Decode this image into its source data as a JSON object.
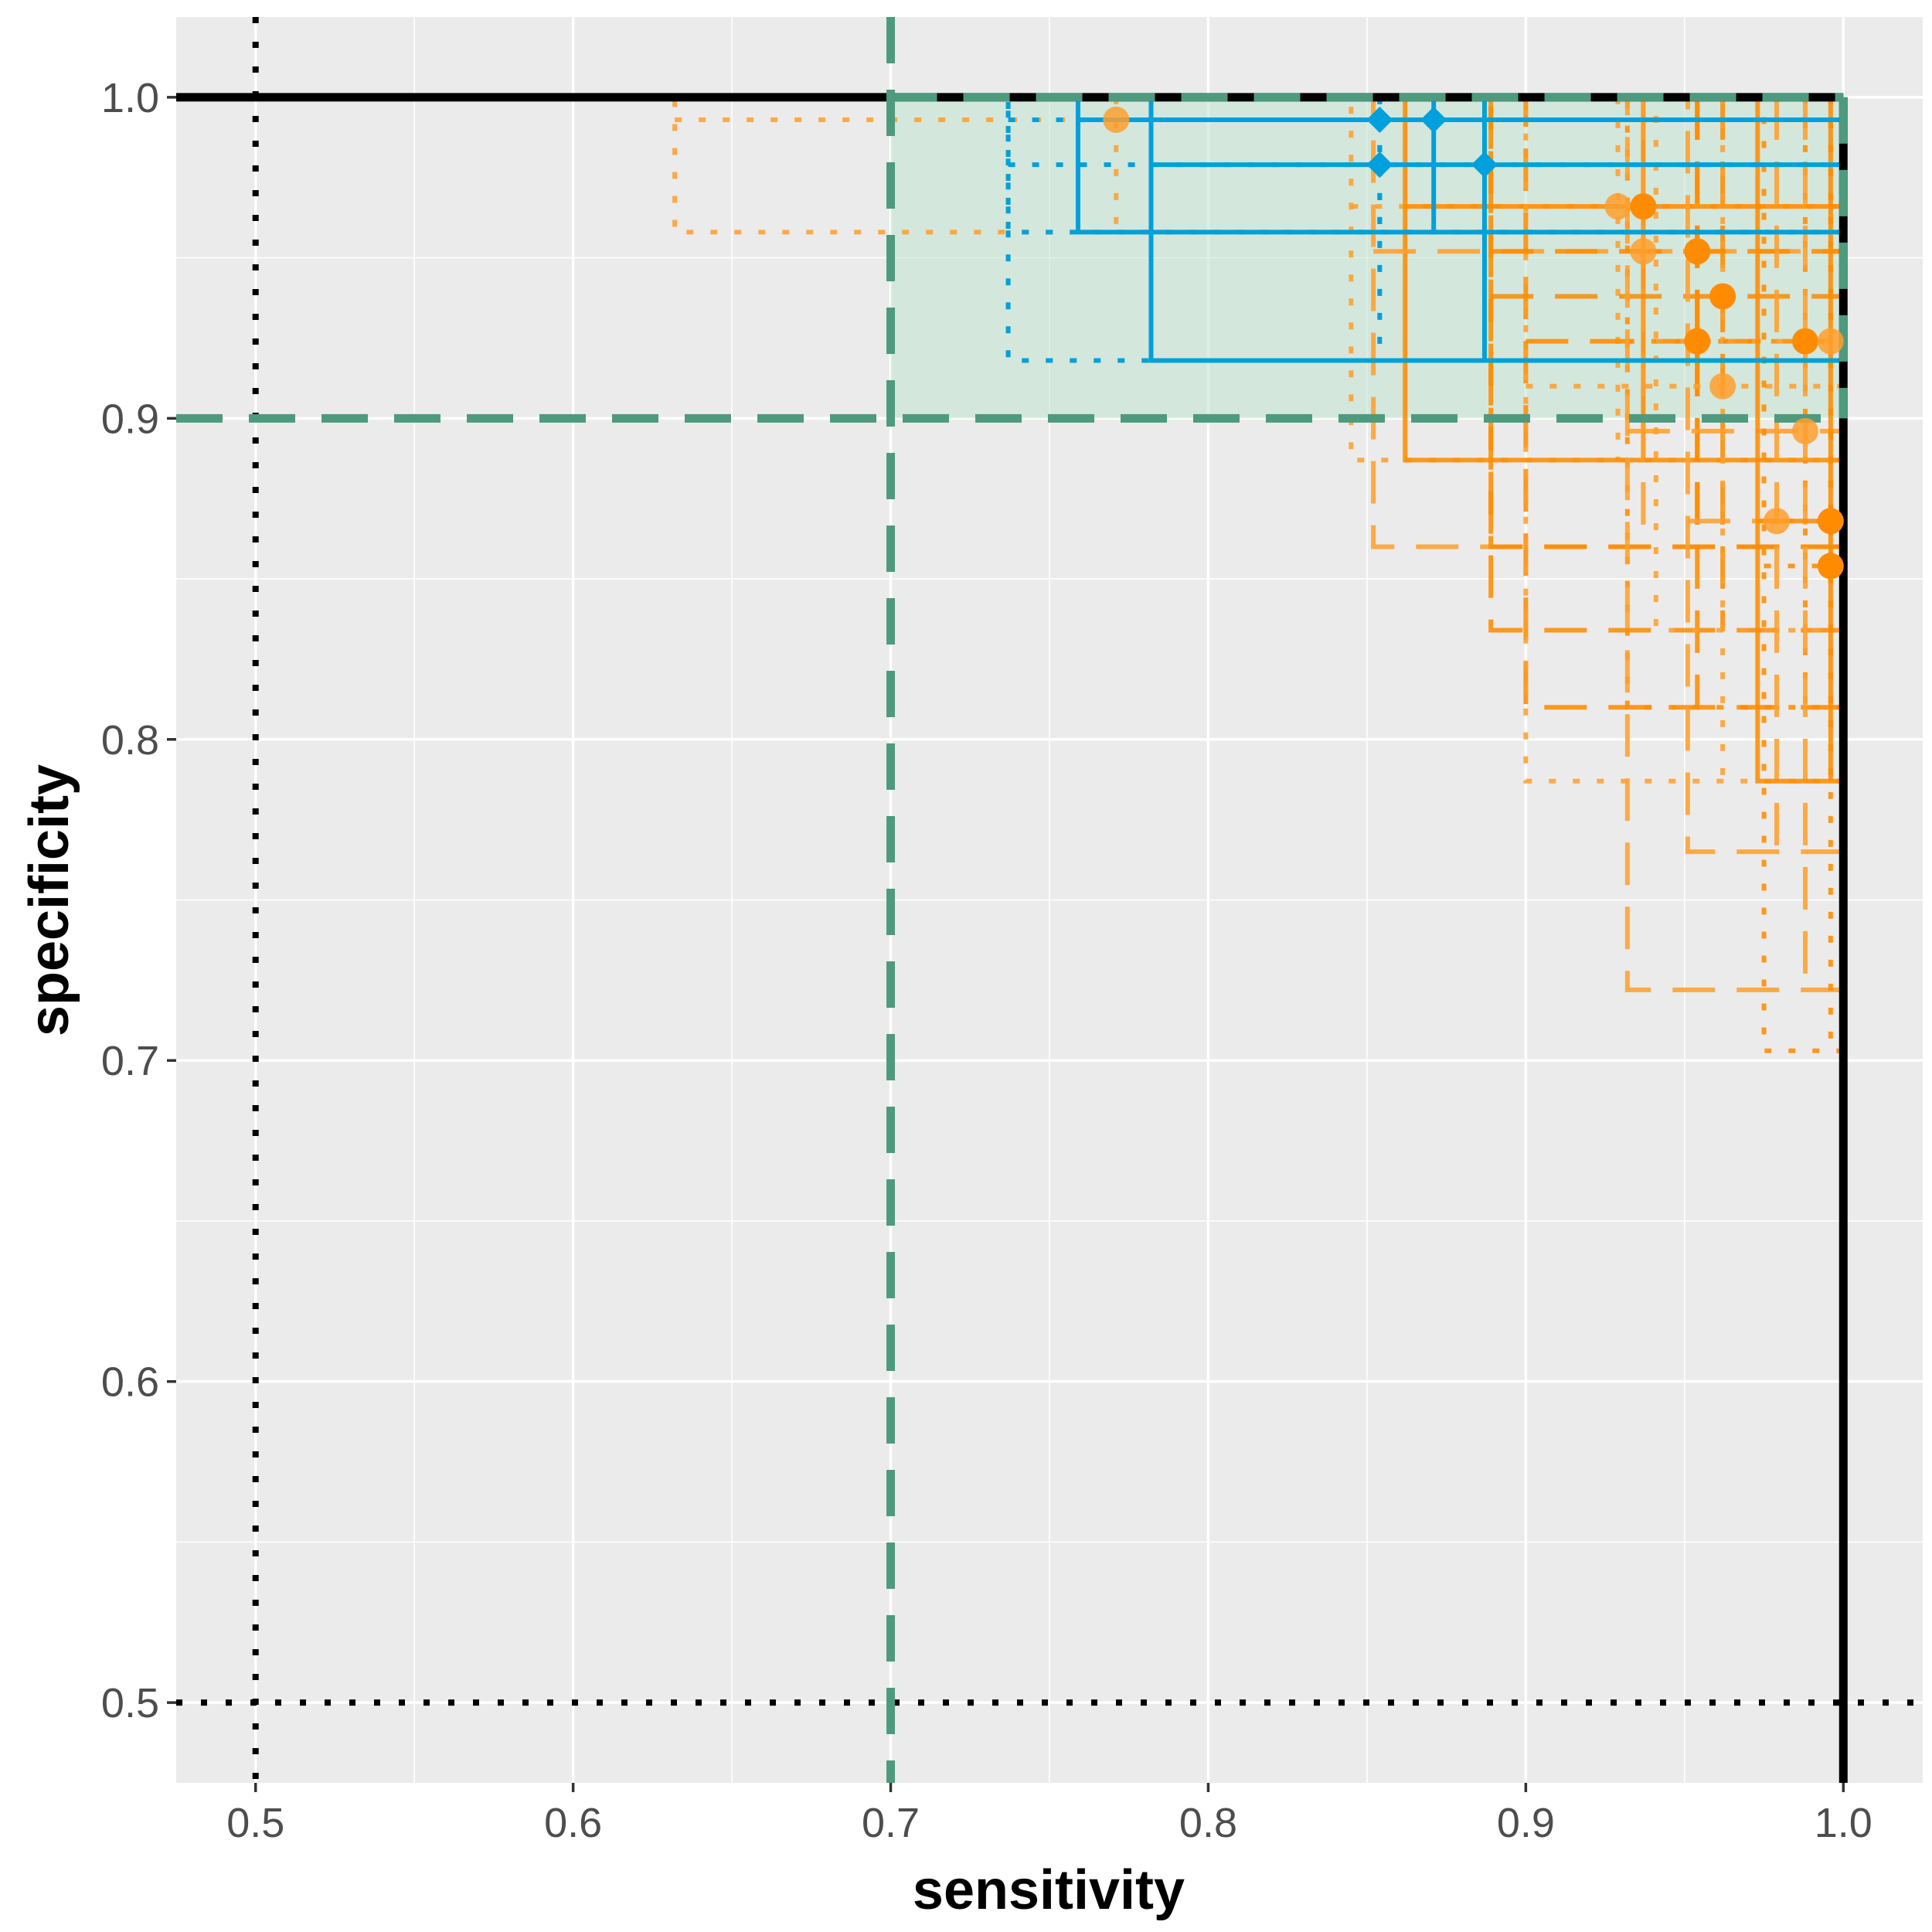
{
  "chart_data": {
    "type": "scatter",
    "xlabel": "sensitivity",
    "ylabel": "specificity",
    "xlim": [
      0.475,
      1.025
    ],
    "ylim": [
      0.475,
      1.025
    ],
    "x_ticks": [
      0.5,
      0.6,
      0.7,
      0.8,
      0.9,
      1.0
    ],
    "y_ticks": [
      0.5,
      0.6,
      0.7,
      0.8,
      0.9,
      1.0
    ],
    "x_tick_labels": [
      "0.5",
      "0.6",
      "0.7",
      "0.8",
      "0.9",
      "1.0"
    ],
    "y_tick_labels": [
      "0.5",
      "0.6",
      "0.7",
      "0.8",
      "0.9",
      "1.0"
    ],
    "colors": {
      "panel": "#ebebeb",
      "grid": "#ffffff",
      "orange": "#ff8c00",
      "orange_light": "#ff9f2e",
      "blue": "#00a0dc",
      "green": "#4e9a7e",
      "green_fill": "#bfe3cf",
      "black": "#000000"
    },
    "reference_lines": [
      {
        "name": "sens-0.5-dotted",
        "x": 0.5,
        "style": "dotted",
        "color": "black"
      },
      {
        "name": "spec-0.5-dotted",
        "y": 0.5,
        "style": "dotted",
        "color": "black"
      },
      {
        "name": "spec-1.0-solid",
        "y": 1.0,
        "style": "solid",
        "color": "black"
      },
      {
        "name": "sens-1.0-solid",
        "x": 1.0,
        "style": "solid",
        "color": "black"
      },
      {
        "name": "sens-0.7-dashed",
        "x": 0.7,
        "style": "dashed",
        "color": "green"
      },
      {
        "name": "spec-0.9-dashed",
        "y": 0.9,
        "style": "dashed",
        "color": "green"
      }
    ],
    "target_region": {
      "x": [
        0.7,
        1.0
      ],
      "y": [
        0.9,
        1.0
      ]
    },
    "series": [
      {
        "name": "orange studies",
        "marker": "circle",
        "points": [
          {
            "sens": 0.771,
            "spec": 0.993,
            "sens_lo": 0.632,
            "spec_lo": 0.958,
            "style": "dotted",
            "light": true
          },
          {
            "sens": 0.929,
            "spec": 0.966,
            "sens_lo": 0.845,
            "spec_lo": 0.887,
            "style": "dotted",
            "light": true
          },
          {
            "sens": 0.937,
            "spec": 0.966,
            "sens_lo": 0.862,
            "spec_lo": 0.887,
            "style": "solid",
            "light": false
          },
          {
            "sens": 0.937,
            "spec": 0.952,
            "sens_lo": 0.852,
            "spec_lo": 0.86,
            "style": "dashed",
            "light": true
          },
          {
            "sens": 0.954,
            "spec": 0.952,
            "sens_lo": 0.889,
            "spec_lo": 0.86,
            "style": "dashed",
            "light": false
          },
          {
            "sens": 0.962,
            "spec": 0.938,
            "sens_lo": 0.889,
            "spec_lo": 0.834,
            "style": "dashed",
            "light": false
          },
          {
            "sens": 0.954,
            "spec": 0.924,
            "sens_lo": 0.9,
            "spec_lo": 0.81,
            "style": "dashed",
            "light": false
          },
          {
            "sens": 0.962,
            "spec": 0.91,
            "sens_lo": 0.9,
            "spec_lo": 0.787,
            "style": "dotted",
            "light": true
          },
          {
            "sens": 0.988,
            "spec": 0.924,
            "sens_lo": 0.932,
            "spec_lo": 0.81,
            "style": "dotted",
            "light": false
          },
          {
            "sens": 0.996,
            "spec": 0.924,
            "sens_lo": 0.941,
            "spec_lo": 0.834,
            "style": "dotted",
            "light": true
          },
          {
            "sens": 0.988,
            "spec": 0.896,
            "sens_lo": 0.932,
            "spec_lo": 0.722,
            "style": "dashed",
            "light": true
          },
          {
            "sens": 0.979,
            "spec": 0.868,
            "sens_lo": 0.951,
            "spec_lo": 0.765,
            "style": "dashed",
            "light": true
          },
          {
            "sens": 0.996,
            "spec": 0.868,
            "sens_lo": 0.973,
            "spec_lo": 0.787,
            "style": "solid",
            "light": false
          },
          {
            "sens": 0.996,
            "spec": 0.854,
            "sens_lo": 0.975,
            "spec_lo": 0.703,
            "style": "dotted",
            "light": false
          }
        ]
      },
      {
        "name": "blue studies",
        "marker": "diamond",
        "points": [
          {
            "sens": 0.854,
            "spec": 0.993,
            "sens_lo": 0.737,
            "spec_lo": 0.958,
            "style": "dotted"
          },
          {
            "sens": 0.871,
            "spec": 0.993,
            "sens_lo": 0.759,
            "spec_lo": 0.958,
            "style": "solid"
          },
          {
            "sens": 0.854,
            "spec": 0.979,
            "sens_lo": 0.737,
            "spec_lo": 0.918,
            "style": "dotted"
          },
          {
            "sens": 0.887,
            "spec": 0.979,
            "sens_lo": 0.782,
            "spec_lo": 0.918,
            "style": "solid"
          }
        ]
      }
    ]
  }
}
